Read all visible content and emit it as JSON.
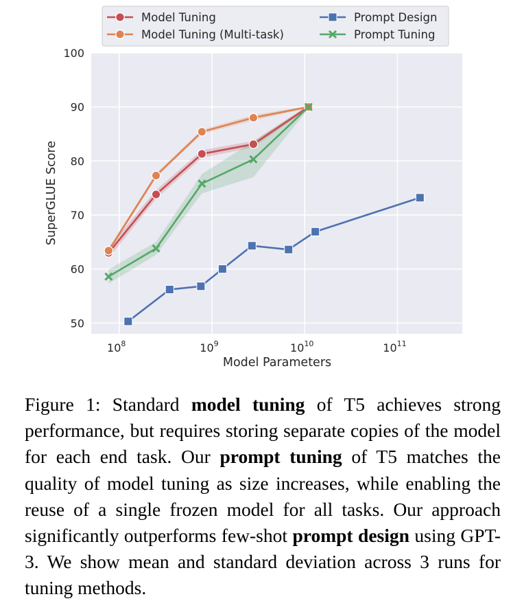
{
  "chart_data": {
    "type": "line",
    "xlabel": "Model Parameters",
    "ylabel": "SuperGLUE Score",
    "x_scale": "log",
    "xlim": [
      50000000,
      500000000000
    ],
    "ylim": [
      48,
      100
    ],
    "yticks": [
      50,
      60,
      70,
      80,
      90,
      100
    ],
    "xticks": [
      {
        "value": 100000000,
        "base": "10",
        "exp": "8"
      },
      {
        "value": 1000000000,
        "base": "10",
        "exp": "9"
      },
      {
        "value": 10000000000,
        "base": "10",
        "exp": "10"
      },
      {
        "value": 100000000000,
        "base": "10",
        "exp": "11"
      }
    ],
    "grid": true,
    "legend_position": "top",
    "series": [
      {
        "name": "Model Tuning",
        "color": "#c44e52",
        "marker": "circle",
        "x": [
          77000000,
          250000000,
          780000000,
          2800000000,
          11000000000
        ],
        "y": [
          63.0,
          73.8,
          81.3,
          83.1,
          90.0
        ],
        "band": [
          1.0,
          0.8,
          0.7,
          0.6,
          0.3
        ]
      },
      {
        "name": "Model Tuning (Multi-task)",
        "color": "#dd8452",
        "marker": "circle",
        "x": [
          77000000,
          250000000,
          780000000,
          2800000000,
          11000000000
        ],
        "y": [
          63.4,
          77.3,
          85.4,
          88.0,
          90.0
        ],
        "band": [
          0.4,
          0.4,
          0.4,
          0.5,
          0.2
        ]
      },
      {
        "name": "Prompt Design",
        "color": "#4c72b0",
        "marker": "square",
        "x": [
          125000000,
          350000000,
          760000000,
          1300000000,
          2700000000,
          6700000000,
          13000000000,
          175000000000
        ],
        "y": [
          50.3,
          56.2,
          56.8,
          60.0,
          64.3,
          63.6,
          66.9,
          73.2
        ],
        "band": null
      },
      {
        "name": "Prompt Tuning",
        "color": "#55a868",
        "marker": "x",
        "x": [
          77000000,
          250000000,
          780000000,
          2800000000,
          11000000000
        ],
        "y": [
          58.6,
          63.8,
          75.8,
          80.3,
          90.0
        ],
        "band": [
          1.3,
          1.2,
          1.8,
          3.3,
          0.3
        ]
      }
    ]
  },
  "caption": {
    "segments": [
      {
        "text": "Figure 1: Standard ",
        "bold": false
      },
      {
        "text": "model tuning",
        "bold": true
      },
      {
        "text": " of T5 achieves strong performance, but requires storing separate copies of the model for each end task.  Our ",
        "bold": false
      },
      {
        "text": "prompt tuning",
        "bold": true
      },
      {
        "text": " of T5 matches the quality of model tuning as size increases, while enabling the reuse of a single frozen model for all tasks. Our approach significantly outperforms few-shot ",
        "bold": false
      },
      {
        "text": "prompt design",
        "bold": true
      },
      {
        "text": " using GPT-3. We show mean and standard deviation across 3 runs for tuning methods.",
        "bold": false
      }
    ]
  }
}
